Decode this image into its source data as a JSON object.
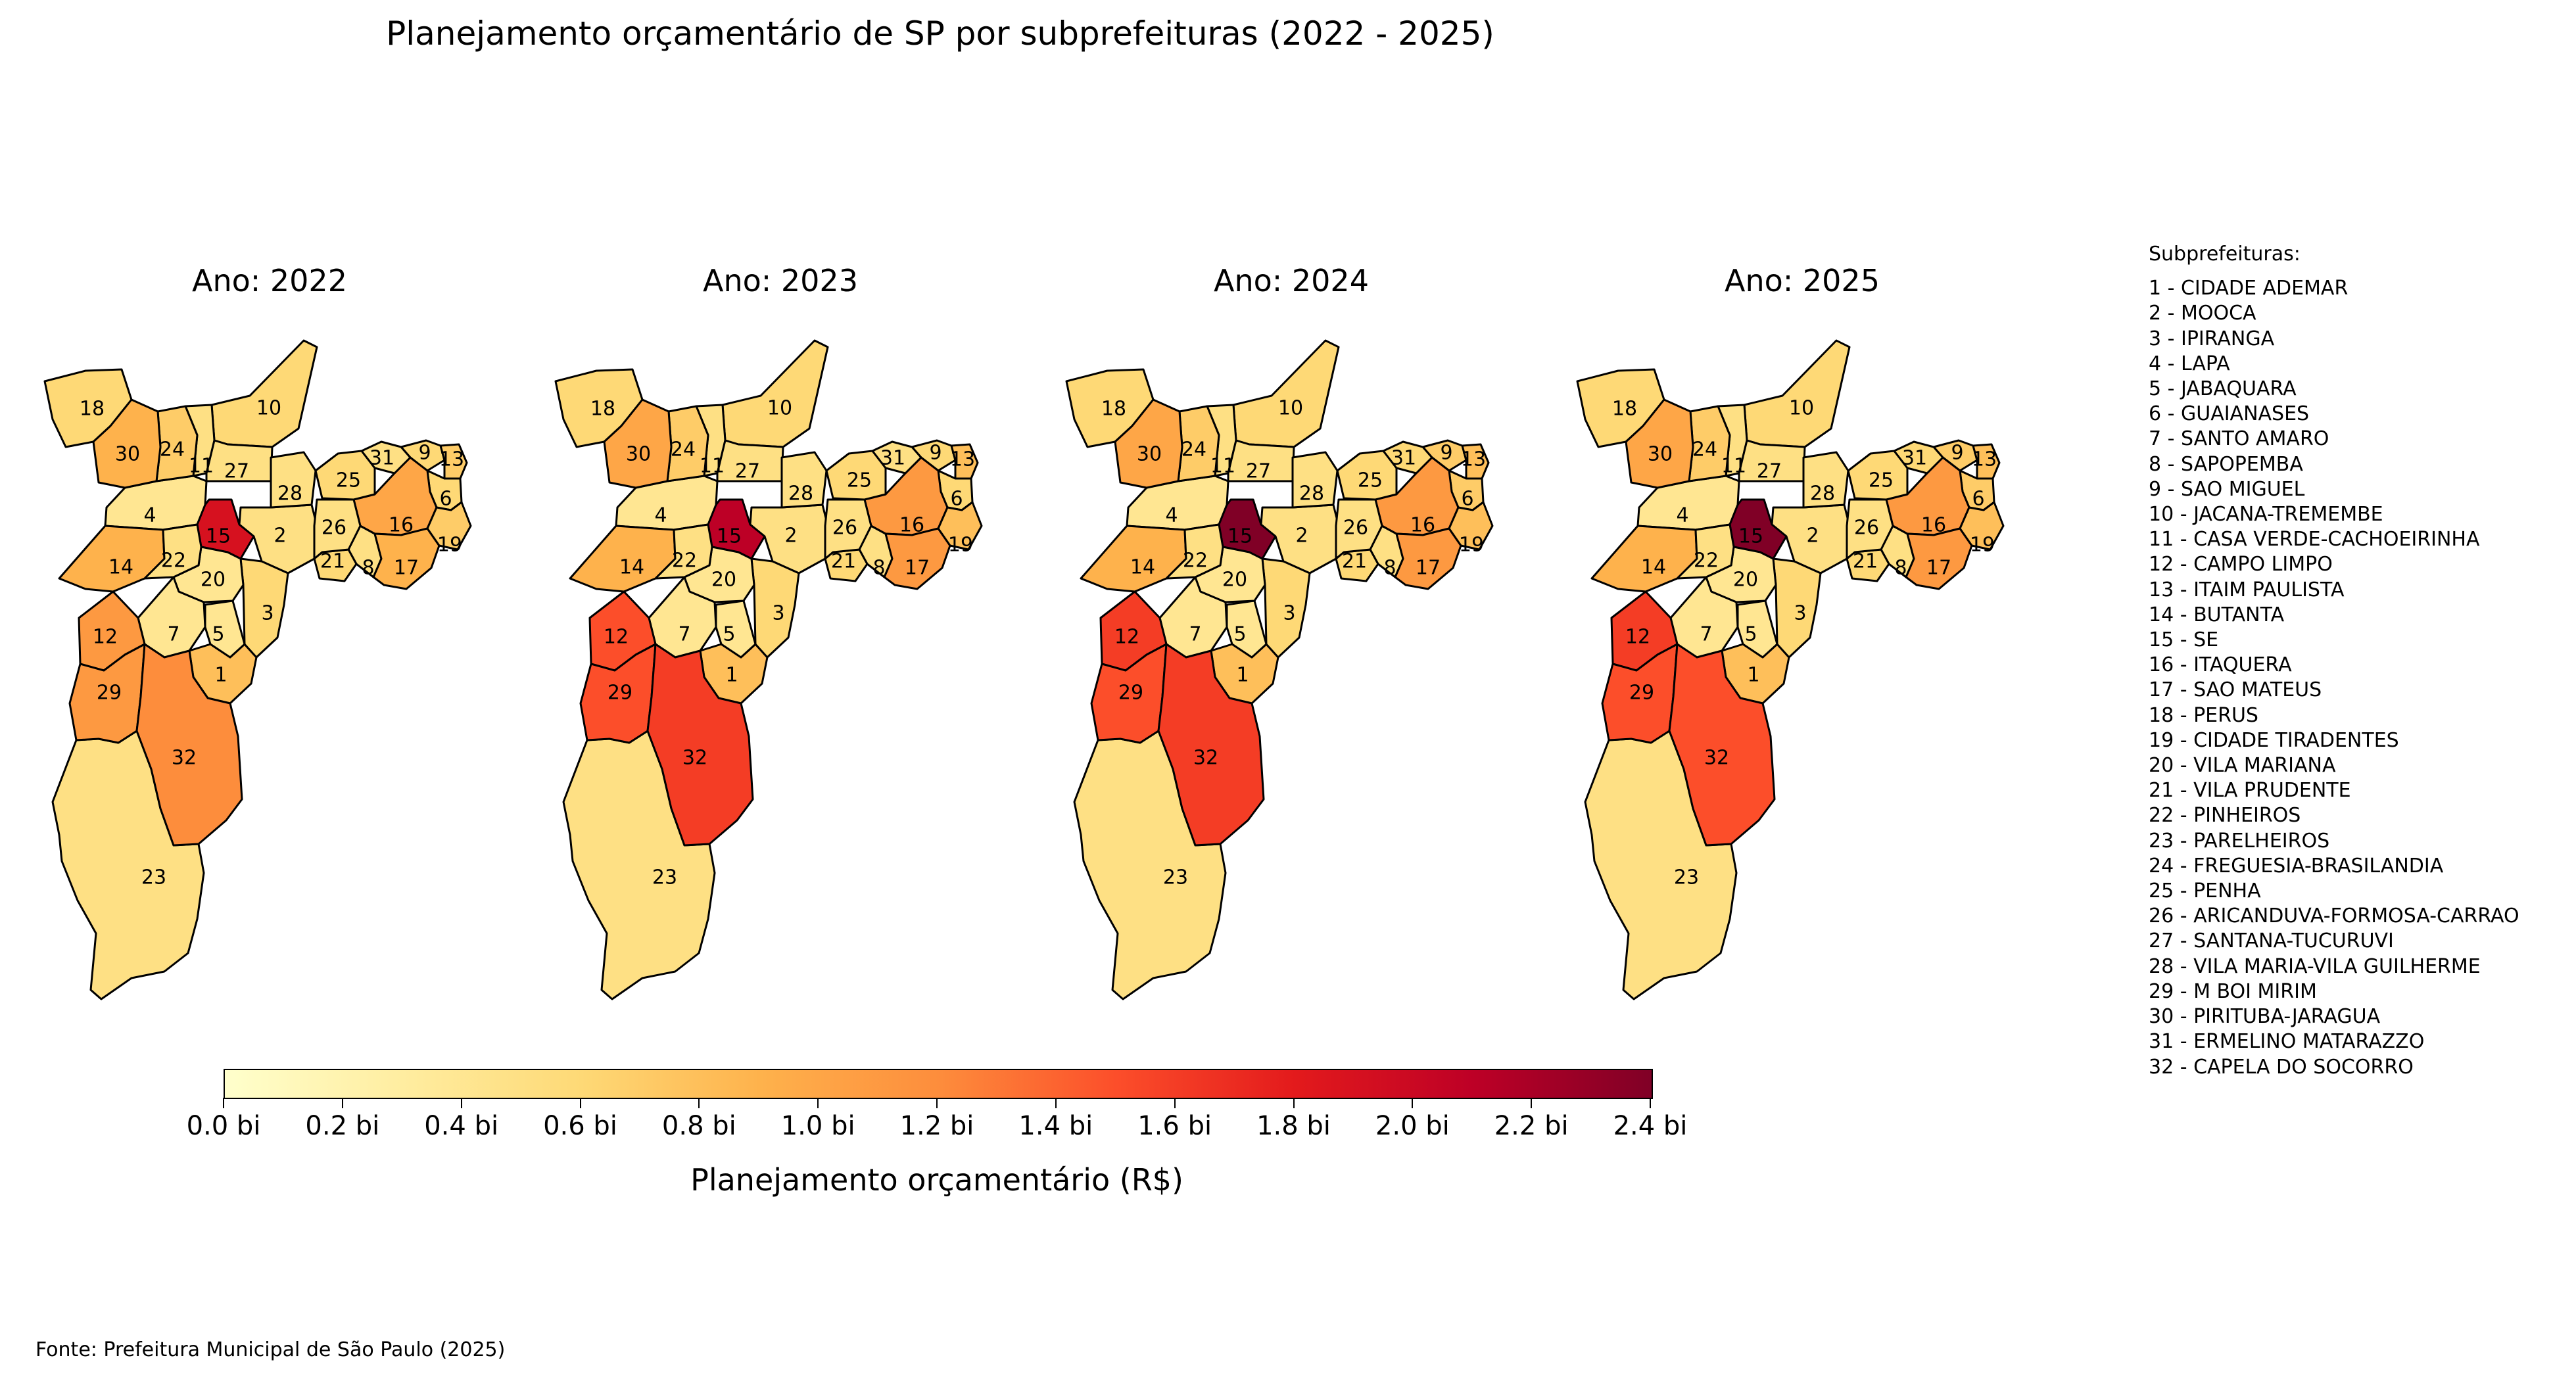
{
  "title": "Planejamento orçamentário de SP por subprefeituras (2022 - 2025)",
  "source": "Fonte: Prefeitura Municipal de São Paulo (2025)",
  "legend": {
    "title": "Subprefeituras:",
    "items": [
      "1 - CIDADE ADEMAR",
      "2 - MOOCA",
      "3 - IPIRANGA",
      "4 - LAPA",
      "5 - JABAQUARA",
      "6 - GUAIANASES",
      "7 - SANTO AMARO",
      "8 - SAPOPEMBA",
      "9 - SAO MIGUEL",
      "10 - JACANA-TREMEMBE",
      "11 - CASA VERDE-CACHOEIRINHA",
      "12 - CAMPO LIMPO",
      "13 - ITAIM PAULISTA",
      "14 - BUTANTA",
      "15 - SE",
      "16 - ITAQUERA",
      "17 - SAO MATEUS",
      "18 - PERUS",
      "19 - CIDADE TIRADENTES",
      "20 - VILA MARIANA",
      "21 - VILA PRUDENTE",
      "22 - PINHEIROS",
      "23 - PARELHEIROS",
      "24 - FREGUESIA-BRASILANDIA",
      "25 - PENHA",
      "26 - ARICANDUVA-FORMOSA-CARRAO",
      "27 - SANTANA-TUCURUVI",
      "28 - VILA MARIA-VILA GUILHERME",
      "29 - M BOI MIRIM",
      "30 - PIRITUBA-JARAGUA",
      "31 - ERMELINO MATARAZZO",
      "32 - CAPELA DO SOCORRO"
    ]
  },
  "colorbar": {
    "label": "Planejamento orçamentário (R$)",
    "range": [
      0,
      2.4
    ],
    "ticks": [
      "0.0 bi",
      "0.2 bi",
      "0.4 bi",
      "0.6 bi",
      "0.8 bi",
      "1.0 bi",
      "1.2 bi",
      "1.4 bi",
      "1.6 bi",
      "1.8 bi",
      "2.0 bi",
      "2.2 bi",
      "2.4 bi"
    ],
    "colormap": [
      "#ffffcc",
      "#ffeda0",
      "#fed976",
      "#feb24c",
      "#fd8d3c",
      "#fc4e2a",
      "#e31a1c",
      "#bd0026",
      "#800026"
    ]
  },
  "region_codes": [
    1,
    2,
    3,
    4,
    5,
    6,
    7,
    8,
    9,
    10,
    11,
    12,
    13,
    14,
    15,
    16,
    17,
    18,
    19,
    20,
    21,
    22,
    23,
    24,
    25,
    26,
    27,
    28,
    29,
    30,
    31,
    32
  ],
  "panels": [
    {
      "title": "Ano: 2022",
      "values": [
        0.8,
        0.5,
        0.6,
        0.4,
        0.4,
        0.6,
        0.4,
        0.5,
        0.6,
        0.6,
        0.5,
        1.1,
        0.7,
        0.9,
        1.9,
        1.0,
        0.9,
        0.6,
        0.7,
        0.4,
        0.6,
        0.5,
        0.5,
        0.7,
        0.6,
        0.5,
        0.5,
        0.5,
        1.1,
        0.9,
        0.5,
        1.2
      ]
    },
    {
      "title": "Ano: 2023",
      "values": [
        0.8,
        0.5,
        0.6,
        0.4,
        0.4,
        0.6,
        0.4,
        0.5,
        0.6,
        0.6,
        0.5,
        1.5,
        0.8,
        0.9,
        2.1,
        1.1,
        1.1,
        0.6,
        0.8,
        0.4,
        0.6,
        0.5,
        0.5,
        0.7,
        0.6,
        0.5,
        0.5,
        0.5,
        1.5,
        1.0,
        0.5,
        1.6
      ]
    },
    {
      "title": "Ano: 2024",
      "values": [
        0.8,
        0.5,
        0.6,
        0.4,
        0.4,
        0.7,
        0.4,
        0.5,
        0.7,
        0.6,
        0.5,
        1.6,
        0.8,
        0.9,
        2.4,
        1.1,
        1.1,
        0.6,
        0.8,
        0.4,
        0.6,
        0.5,
        0.5,
        0.7,
        0.6,
        0.5,
        0.5,
        0.5,
        1.5,
        1.0,
        0.6,
        1.6
      ]
    },
    {
      "title": "Ano: 2025",
      "values": [
        0.8,
        0.5,
        0.6,
        0.4,
        0.4,
        0.7,
        0.4,
        0.5,
        0.7,
        0.6,
        0.5,
        1.6,
        0.8,
        0.9,
        2.4,
        1.1,
        1.1,
        0.6,
        0.8,
        0.4,
        0.6,
        0.5,
        0.5,
        0.7,
        0.6,
        0.5,
        0.5,
        0.5,
        1.5,
        1.0,
        0.6,
        1.5
      ]
    }
  ]
}
